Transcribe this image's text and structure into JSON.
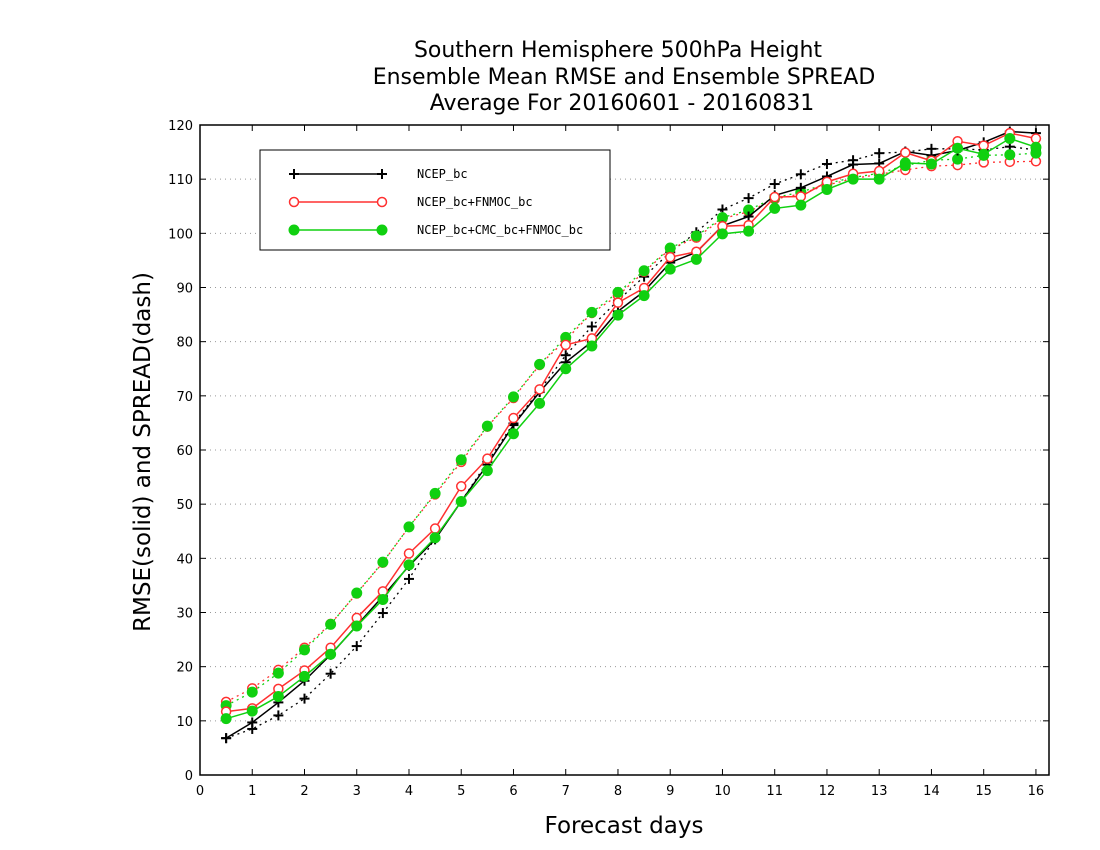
{
  "chart_data": {
    "type": "line",
    "title": [
      "Southern Hemisphere 500hPa Height",
      "Ensemble Mean RMSE and Ensemble SPREAD",
      "Average For 20160601 - 20160831"
    ],
    "xlabel": "Forecast days",
    "ylabel": "RMSE(solid) and SPREAD(dash)",
    "xlim": [
      0,
      16.25
    ],
    "ylim": [
      0,
      120
    ],
    "xticks": [
      0,
      1,
      2,
      3,
      4,
      5,
      6,
      7,
      8,
      9,
      10,
      11,
      12,
      13,
      14,
      15,
      16
    ],
    "yticks": [
      0,
      10,
      20,
      30,
      40,
      50,
      60,
      70,
      80,
      90,
      100,
      110,
      120
    ],
    "grid": true,
    "legend_position": "top-left",
    "x": [
      0.5,
      1,
      1.5,
      2,
      2.5,
      3,
      3.5,
      4,
      4.5,
      5,
      5.5,
      6,
      6.5,
      7,
      7.5,
      8,
      8.5,
      9,
      9.5,
      10,
      10.5,
      11,
      11.5,
      12,
      12.5,
      13,
      13.5,
      14,
      14.5,
      15,
      15.5,
      16
    ],
    "series": [
      {
        "name": "NCEP_bc",
        "color": "#000000",
        "marker": "plus",
        "rmse": [
          6.8,
          9.7,
          13.4,
          17.4,
          22.2,
          27.6,
          33.0,
          38.6,
          43.5,
          50.5,
          57.3,
          64.6,
          70.7,
          76.2,
          80.0,
          85.6,
          89.3,
          94.6,
          96.5,
          101.4,
          103.1,
          107.0,
          108.4,
          110.5,
          112.7,
          112.9,
          115.1,
          114.4,
          115.3,
          116.8,
          118.8,
          118.5
        ],
        "spread": [
          6.8,
          8.5,
          11.0,
          14.1,
          18.7,
          23.8,
          29.9,
          36.2,
          43.7,
          50.5,
          57.8,
          64.9,
          71.0,
          77.5,
          82.8,
          87.6,
          92.0,
          96.5,
          100.2,
          104.4,
          106.5,
          109.1,
          110.9,
          112.8,
          113.5,
          114.8,
          115.0,
          115.6,
          115.6,
          115.4,
          116.0,
          115.4
        ]
      },
      {
        "name": "NCEP_bc+FNMOC_bc",
        "color": "#ff3030",
        "marker": "open-circle",
        "rmse": [
          11.7,
          12.3,
          15.9,
          19.3,
          23.5,
          29.0,
          33.9,
          40.9,
          45.5,
          53.3,
          58.4,
          65.9,
          71.2,
          79.4,
          80.6,
          87.2,
          89.9,
          95.6,
          96.6,
          101.3,
          101.5,
          106.7,
          106.8,
          109.5,
          111.0,
          111.5,
          114.9,
          113.4,
          117.0,
          116.2,
          118.5,
          117.5
        ],
        "spread": [
          13.5,
          16.0,
          19.4,
          23.5,
          27.9,
          33.5,
          39.2,
          45.8,
          51.8,
          57.8,
          64.3,
          69.6,
          75.7,
          80.3,
          85.3,
          88.5,
          92.9,
          97.1,
          99.2,
          102.7,
          104.0,
          106.3,
          107.3,
          108.9,
          110.1,
          110.9,
          111.7,
          112.4,
          112.6,
          113.1,
          113.2,
          113.3
        ]
      },
      {
        "name": "NCEP_bc+CMC_bc+FNMOC_bc",
        "color": "#10d010",
        "marker": "filled-circle",
        "rmse": [
          10.4,
          11.8,
          14.5,
          18.2,
          22.3,
          27.5,
          32.4,
          38.8,
          43.8,
          50.5,
          56.2,
          63.0,
          68.6,
          75.0,
          79.2,
          84.9,
          88.5,
          93.4,
          95.2,
          99.9,
          100.4,
          104.6,
          105.2,
          108.1,
          110.0,
          110.0,
          113.0,
          112.8,
          115.7,
          114.6,
          117.5,
          115.9
        ],
        "spread": [
          12.8,
          15.3,
          18.8,
          23.1,
          27.8,
          33.6,
          39.3,
          45.8,
          52.0,
          58.2,
          64.4,
          69.8,
          75.8,
          80.8,
          85.4,
          89.1,
          93.1,
          97.3,
          99.5,
          102.9,
          104.3,
          106.6,
          107.6,
          109.2,
          110.3,
          111.1,
          112.5,
          113.5,
          113.7,
          114.4,
          114.5,
          114.8
        ]
      }
    ]
  }
}
